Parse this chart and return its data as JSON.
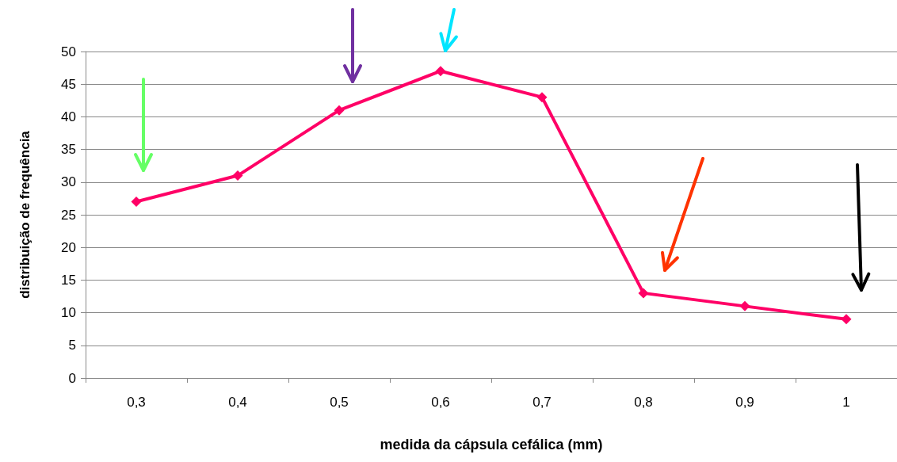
{
  "chart_data": {
    "type": "line",
    "xlabel": "medida da cápsula cefálica (mm)",
    "ylabel": "distribuição de frequência",
    "categories": [
      "0,3",
      "0,4",
      "0,5",
      "0,6",
      "0,7",
      "0,8",
      "0,9",
      "1"
    ],
    "series": [
      {
        "color": "#ff0066",
        "values": [
          27,
          31,
          41,
          47,
          43,
          13,
          11,
          9
        ]
      }
    ],
    "ylim": [
      0,
      50
    ],
    "yticks": [
      0,
      5,
      10,
      15,
      20,
      25,
      30,
      35,
      40,
      45,
      50
    ],
    "grid": "y",
    "marker": "diamond",
    "line_style": "solid"
  }
}
